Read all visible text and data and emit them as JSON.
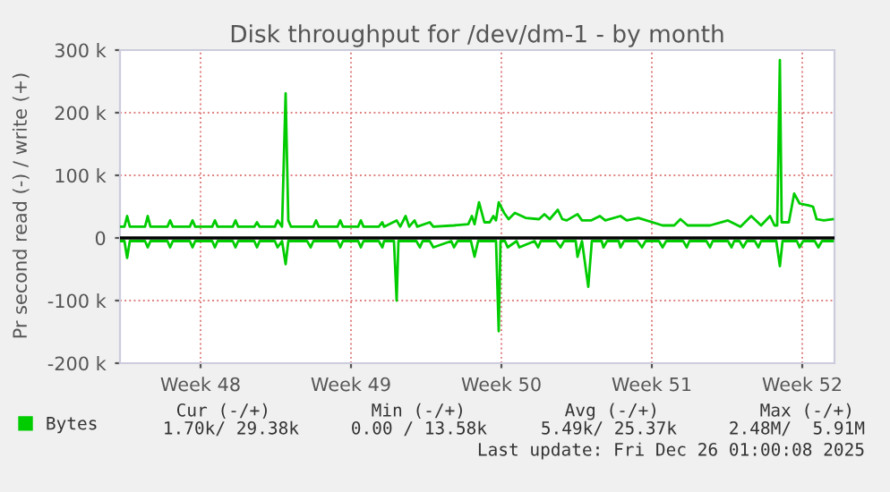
{
  "chart_data": {
    "type": "line",
    "title": "Disk throughput for /dev/dm-1 - by month",
    "ylabel": "Pr second read (-) / write (+)",
    "xlim": [
      "2025-11-23T18:00",
      "2025-12-27T00:00"
    ],
    "xticks": [
      {
        "value": "2025-11-27T12:00",
        "label": "Week 48"
      },
      {
        "value": "2025-12-04T12:00",
        "label": "Week 49"
      },
      {
        "value": "2025-12-11T12:00",
        "label": "Week 50"
      },
      {
        "value": "2025-12-18T12:00",
        "label": "Week 51"
      },
      {
        "value": "2025-12-25T12:00",
        "label": "Week 52"
      }
    ],
    "ylim": [
      -200000,
      300000
    ],
    "yticks": [
      {
        "value": -200000,
        "label": "-200 k"
      },
      {
        "value": -100000,
        "label": "-100 k"
      },
      0,
      {
        "value": 100000,
        "label": "100 k"
      },
      {
        "value": 200000,
        "label": "200 k"
      },
      {
        "value": 300000,
        "label": "300 k"
      }
    ],
    "series": [
      {
        "name": "Bytes",
        "color": "#00cc00",
        "x": [
          "2025-11-23T18:00",
          "2025-11-23T23:00",
          "2025-11-24T02:00",
          "2025-11-24T05:00",
          "2025-11-24T22:00",
          "2025-11-25T01:00",
          "2025-11-25T04:00",
          "2025-11-25T23:00",
          "2025-11-26T02:00",
          "2025-11-26T05:00",
          "2025-11-27T00:00",
          "2025-11-27T03:00",
          "2025-11-27T06:00",
          "2025-11-28T01:00",
          "2025-11-28T04:00",
          "2025-11-28T07:00",
          "2025-11-29T00:00",
          "2025-11-29T03:00",
          "2025-11-29T06:00",
          "2025-11-30T00:00",
          "2025-11-30T03:00",
          "2025-11-30T06:00",
          "2025-11-30T23:00",
          "2025-12-01T02:00",
          "2025-12-01T07:00",
          "2025-12-01T11:00",
          "2025-12-01T14:00",
          "2025-12-01T17:00",
          "2025-12-02T18:00",
          "2025-12-02T21:00",
          "2025-12-03T00:00",
          "2025-12-03T21:00",
          "2025-12-04T00:00",
          "2025-12-04T03:00",
          "2025-12-04T20:00",
          "2025-12-04T23:00",
          "2025-12-05T02:00",
          "2025-12-05T19:00",
          "2025-12-05T23:00",
          "2025-12-06T01:00",
          "2025-12-06T15:00",
          "2025-12-06T19:00",
          "2025-12-07T01:00",
          "2025-12-07T05:00",
          "2025-12-07T11:00",
          "2025-12-07T14:00",
          "2025-12-08T04:00",
          "2025-12-08T08:00",
          "2025-12-09T07:00",
          "2025-12-09T23:00",
          "2025-12-10T03:00",
          "2025-12-10T06:00",
          "2025-12-10T11:00",
          "2025-12-10T17:00",
          "2025-12-10T23:00",
          "2025-12-11T03:00",
          "2025-12-11T06:00",
          "2025-12-11T09:00",
          "2025-12-11T15:00",
          "2025-12-11T20:00",
          "2025-12-12T03:00",
          "2025-12-12T15:00",
          "2025-12-13T06:00",
          "2025-12-13T12:00",
          "2025-12-13T18:00",
          "2025-12-14T03:00",
          "2025-12-14T08:00",
          "2025-12-14T13:00",
          "2025-12-15T01:00",
          "2025-12-15T06:00",
          "2025-12-15T16:00",
          "2025-12-16T02:00",
          "2025-12-16T08:00",
          "2025-12-17T01:00",
          "2025-12-17T08:00",
          "2025-12-17T21:00",
          "2025-12-19T00:00",
          "2025-12-19T13:00",
          "2025-12-19T20:00",
          "2025-12-20T04:00",
          "2025-12-21T05:00",
          "2025-12-22T01:00",
          "2025-12-22T15:00",
          "2025-12-23T03:00",
          "2025-12-23T14:00",
          "2025-12-24T00:00",
          "2025-12-24T05:00",
          "2025-12-24T08:00",
          "2025-12-24T11:00",
          "2025-12-24T13:00",
          "2025-12-24T15:00",
          "2025-12-24T21:00",
          "2025-12-25T03:00",
          "2025-12-25T09:00",
          "2025-12-25T19:00",
          "2025-12-26T00:00",
          "2025-12-26T04:00",
          "2025-12-26T12:00",
          "2025-12-26T22:00"
        ],
        "values": [
          18000,
          18000,
          35000,
          18000,
          18000,
          35000,
          18000,
          18000,
          28000,
          18000,
          18000,
          28000,
          18000,
          18000,
          28000,
          18000,
          18000,
          28000,
          18000,
          18000,
          25000,
          18000,
          18000,
          28000,
          18000,
          231000,
          28000,
          18000,
          18000,
          28000,
          18000,
          18000,
          28000,
          18000,
          18000,
          28000,
          18000,
          18000,
          25000,
          18000,
          28000,
          18000,
          35000,
          18000,
          28000,
          18000,
          25000,
          18000,
          20000,
          22000,
          35000,
          22000,
          57000,
          25000,
          25000,
          35000,
          28000,
          57000,
          40000,
          30000,
          40000,
          32000,
          30000,
          38000,
          30000,
          45000,
          30000,
          28000,
          38000,
          28000,
          28000,
          35000,
          28000,
          35000,
          28000,
          32000,
          20000,
          20000,
          30000,
          20000,
          20000,
          28000,
          18000,
          35000,
          20000,
          35000,
          20000,
          20000,
          284000,
          25000,
          25000,
          25000,
          71000,
          55000,
          52000,
          50000,
          30000,
          28000,
          30000
        ]
      },
      {
        "color": "#00cc00",
        "x": [
          "2025-11-23T18:00",
          "2025-11-23T23:00",
          "2025-11-24T02:00",
          "2025-11-24T05:00",
          "2025-11-24T22:00",
          "2025-11-25T01:00",
          "2025-11-25T04:00",
          "2025-11-25T23:00",
          "2025-11-26T02:00",
          "2025-11-26T05:00",
          "2025-11-27T00:00",
          "2025-11-27T03:00",
          "2025-11-27T06:00",
          "2025-11-28T01:00",
          "2025-11-28T04:00",
          "2025-11-28T07:00",
          "2025-11-29T00:00",
          "2025-11-29T03:00",
          "2025-11-29T06:00",
          "2025-11-30T00:00",
          "2025-11-30T03:00",
          "2025-11-30T06:00",
          "2025-11-30T23:00",
          "2025-12-01T02:00",
          "2025-12-01T07:00",
          "2025-12-01T11:00",
          "2025-12-01T14:00",
          "2025-12-02T11:00",
          "2025-12-02T15:00",
          "2025-12-02T18:00",
          "2025-12-03T21:00",
          "2025-12-04T00:00",
          "2025-12-04T03:00",
          "2025-12-04T20:00",
          "2025-12-04T23:00",
          "2025-12-05T02:00",
          "2025-12-05T19:00",
          "2025-12-05T23:00",
          "2025-12-06T01:00",
          "2025-12-06T12:00",
          "2025-12-06T15:00",
          "2025-12-06T17:00",
          "2025-12-07T13:00",
          "2025-12-07T17:00",
          "2025-12-07T20:00",
          "2025-12-08T04:00",
          "2025-12-08T08:00",
          "2025-12-09T04:00",
          "2025-12-09T07:00",
          "2025-12-09T11:00",
          "2025-12-10T02:00",
          "2025-12-10T06:00",
          "2025-12-10T10:00",
          "2025-12-11T06:00",
          "2025-12-11T09:00",
          "2025-12-11T11:00",
          "2025-12-11T16:00",
          "2025-12-11T19:00",
          "2025-12-12T05:00",
          "2025-12-12T08:00",
          "2025-12-13T01:00",
          "2025-12-13T05:00",
          "2025-12-13T08:00",
          "2025-12-14T01:00",
          "2025-12-14T06:00",
          "2025-12-14T10:00",
          "2025-12-14T23:00",
          "2025-12-15T01:00",
          "2025-12-15T06:00",
          "2025-12-15T13:00",
          "2025-12-15T17:00",
          "2025-12-16T04:00",
          "2025-12-16T06:00",
          "2025-12-16T10:00",
          "2025-12-16T23:00",
          "2025-12-17T01:00",
          "2025-12-17T05:00",
          "2025-12-17T20:00",
          "2025-12-18T01:00",
          "2025-12-18T05:00",
          "2025-12-18T20:00",
          "2025-12-19T00:00",
          "2025-12-19T04:00",
          "2025-12-19T23:00",
          "2025-12-20T03:00",
          "2025-12-20T06:00",
          "2025-12-21T01:00",
          "2025-12-21T05:00",
          "2025-12-21T08:00",
          "2025-12-22T01:00",
          "2025-12-22T05:00",
          "2025-12-22T08:00",
          "2025-12-22T14:00",
          "2025-12-22T18:00",
          "2025-12-22T22:00",
          "2025-12-23T07:00",
          "2025-12-23T11:00",
          "2025-12-23T14:00",
          "2025-12-24T07:00",
          "2025-12-24T11:00",
          "2025-12-24T14:00",
          "2025-12-25T06:00",
          "2025-12-25T09:00",
          "2025-12-25T13:00",
          "2025-12-26T02:00",
          "2025-12-26T06:00",
          "2025-12-26T10:00",
          "2025-12-26T22:00"
        ],
        "values": [
          -5000,
          -5000,
          -32000,
          -5000,
          -5000,
          -15000,
          -5000,
          -5000,
          -15000,
          -5000,
          -5000,
          -15000,
          -5000,
          -5000,
          -15000,
          -5000,
          -5000,
          -15000,
          -5000,
          -5000,
          -15000,
          -5000,
          -5000,
          -15000,
          -5000,
          -42000,
          -5000,
          -5000,
          -15000,
          -5000,
          -5000,
          -15000,
          -5000,
          -5000,
          -15000,
          -5000,
          -5000,
          -15000,
          -5000,
          -5000,
          -100000,
          -5000,
          -5000,
          -15000,
          -5000,
          -5000,
          -15000,
          -5000,
          -15000,
          -5000,
          -5000,
          -30000,
          -5000,
          -5000,
          -149000,
          -5000,
          -5000,
          -15000,
          -5000,
          -15000,
          -5000,
          -15000,
          -5000,
          -5000,
          -15000,
          -5000,
          -5000,
          -30000,
          -5000,
          -78000,
          -5000,
          -5000,
          -15000,
          -5000,
          -5000,
          -15000,
          -5000,
          -5000,
          -15000,
          -5000,
          -5000,
          -15000,
          -5000,
          -5000,
          -15000,
          -5000,
          -5000,
          -15000,
          -5000,
          -5000,
          -15000,
          -5000,
          -5000,
          -15000,
          -5000,
          -5000,
          -15000,
          -5000,
          -5000,
          -45000,
          -5000,
          -5000,
          -15000,
          -5000,
          -5000,
          -15000,
          -5000,
          -5000
        ]
      }
    ],
    "ref_lines": [
      {
        "axis": "y",
        "value": 0,
        "color": "#000000",
        "line_style": "solid"
      }
    ],
    "grid": true,
    "legend": "bottom left",
    "marker": "none",
    "line_style": "solid",
    "annotations": [
      "Cur (-/+)",
      "Min (-/+)",
      "Avg (-/+)",
      "Max (-/+)",
      "1.70k/ 29.38k",
      "0.00 / 13.58k",
      "5.49k/ 25.37k",
      "2.48M/  5.91M",
      "Last update: Fri Dec 26 01:00:08 2025"
    ]
  }
}
